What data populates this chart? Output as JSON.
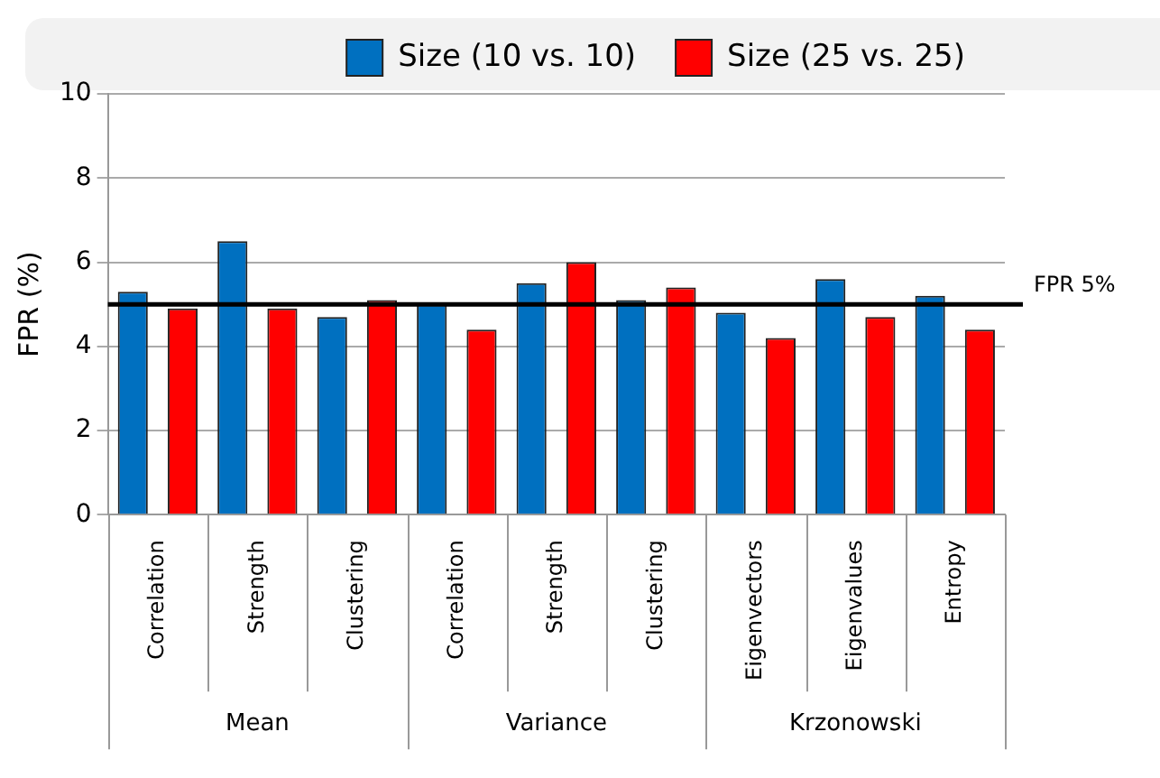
{
  "chart_data": {
    "type": "bar",
    "ylabel": "FPR (%)",
    "categories": [
      "Correlation",
      "Strength",
      "Clustering",
      "Correlation",
      "Strength",
      "Clustering",
      "Eigenvectors",
      "Eigenvalues",
      "Entropy"
    ],
    "series": [
      {
        "name": "Size (10 vs. 10)",
        "color": "#0070c0",
        "values": [
          5.3,
          6.5,
          4.7,
          5.0,
          5.5,
          5.1,
          4.8,
          5.6,
          5.2
        ]
      },
      {
        "name": "Size (25 vs. 25)",
        "color": "#ff0000",
        "values": [
          4.9,
          4.9,
          5.1,
          4.4,
          6.0,
          5.4,
          4.2,
          4.7,
          4.4
        ]
      }
    ],
    "ylim": [
      0,
      10
    ],
    "yticks": [
      0,
      2,
      4,
      6,
      8,
      10
    ],
    "grid": "y",
    "legend": "top right",
    "ref_lines": [
      {
        "axis": "y",
        "value": 5,
        "label": "FPR 5%",
        "color": "#000000"
      }
    ],
    "annotations": [
      "Mean",
      "Variance",
      "Krzonowski"
    ]
  }
}
